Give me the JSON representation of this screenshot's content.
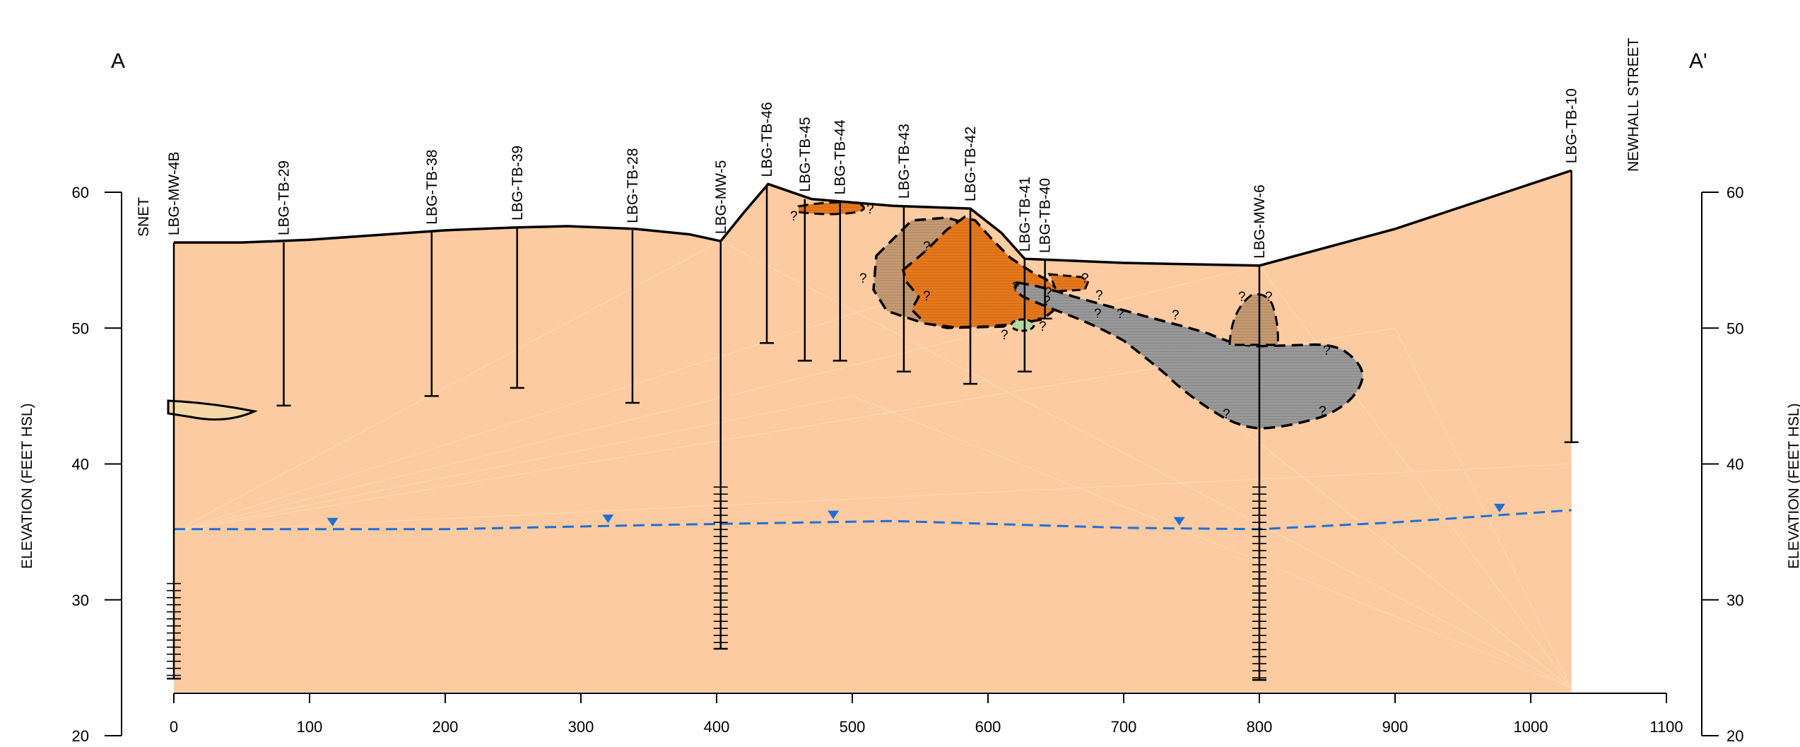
{
  "section": {
    "corner_left": "A",
    "corner_right": "A'",
    "label_snet": "SNET",
    "label_newhall": "NEWHALL STREET"
  },
  "axes": {
    "y_title_left": "ELEVATION (FEET HSL)",
    "y_title_right": "ELEVATION (FEET HSL)",
    "x_range": [
      0,
      1100
    ],
    "y_range": [
      20,
      60
    ],
    "x_ticks": [
      0,
      100,
      200,
      300,
      400,
      500,
      600,
      700,
      800,
      900,
      1000,
      1100
    ],
    "y_ticks": [
      20,
      30,
      40,
      50,
      60
    ]
  },
  "boreholes": [
    {
      "name": "LBG-MW-4B",
      "x": 0,
      "top": 56.3,
      "bottom": 24.2,
      "screen": [
        31.2,
        24.2
      ]
    },
    {
      "name": "LBG-TB-29",
      "x": 81,
      "top": 56.3,
      "bottom": 44.3
    },
    {
      "name": "LBG-TB-38",
      "x": 190,
      "top": 57.1,
      "bottom": 45.0
    },
    {
      "name": "LBG-TB-39",
      "x": 253,
      "top": 57.4,
      "bottom": 45.6
    },
    {
      "name": "LBG-TB-28",
      "x": 338,
      "top": 57.2,
      "bottom": 44.5
    },
    {
      "name": "LBG-MW-5",
      "x": 403,
      "top": 56.4,
      "bottom": 26.4,
      "screen": [
        38.3,
        26.4
      ]
    },
    {
      "name": "LBG-TB-46",
      "x": 437,
      "top": 60.6,
      "bottom": 48.9
    },
    {
      "name": "LBG-TB-45",
      "x": 465,
      "top": 59.5,
      "bottom": 47.6
    },
    {
      "name": "LBG-TB-44",
      "x": 491,
      "top": 59.3,
      "bottom": 47.6
    },
    {
      "name": "LBG-TB-43",
      "x": 538,
      "top": 59.0,
      "bottom": 46.8
    },
    {
      "name": "LBG-TB-42",
      "x": 587,
      "top": 58.8,
      "bottom": 45.9
    },
    {
      "name": "LBG-TB-41",
      "x": 627,
      "top": 55.1,
      "bottom": 46.8
    },
    {
      "name": "LBG-TB-40",
      "x": 642,
      "top": 55.0,
      "bottom": 50.7
    },
    {
      "name": "LBG-MW-6",
      "x": 800,
      "top": 54.6,
      "bottom": 24.1,
      "screen": [
        38.3,
        24.1
      ]
    },
    {
      "name": "LBG-TB-10",
      "x": 1030,
      "top": 61.6,
      "bottom": 41.6
    }
  ],
  "ground_surface": [
    [
      0,
      56.3
    ],
    [
      50,
      56.3
    ],
    [
      100,
      56.5
    ],
    [
      200,
      57.2
    ],
    [
      250,
      57.4
    ],
    [
      290,
      57.5
    ],
    [
      340,
      57.3
    ],
    [
      380,
      56.9
    ],
    [
      403,
      56.4
    ],
    [
      420,
      58.5
    ],
    [
      438,
      60.6
    ],
    [
      470,
      59.5
    ],
    [
      530,
      59.0
    ],
    [
      587,
      58.8
    ],
    [
      610,
      57.0
    ],
    [
      627,
      55.1
    ],
    [
      700,
      54.8
    ],
    [
      800,
      54.6
    ],
    [
      900,
      57.3
    ],
    [
      1030,
      61.6
    ]
  ],
  "water_table": {
    "elevations": [
      [
        0,
        35.2
      ],
      [
        200,
        35.2
      ],
      [
        350,
        35.5
      ],
      [
        530,
        35.8
      ],
      [
        700,
        35.3
      ],
      [
        800,
        35.2
      ],
      [
        900,
        35.7
      ],
      [
        1030,
        36.6
      ]
    ],
    "markers_x": [
      117,
      320,
      486,
      741,
      977
    ],
    "color": "#1f6fd6"
  },
  "colors": {
    "fill": "#fdcba1",
    "orange_unit": "#e2741a",
    "brown_unit": "#c4966a",
    "gray_unit": "#909090",
    "green_lens": "#b7d7a0"
  }
}
